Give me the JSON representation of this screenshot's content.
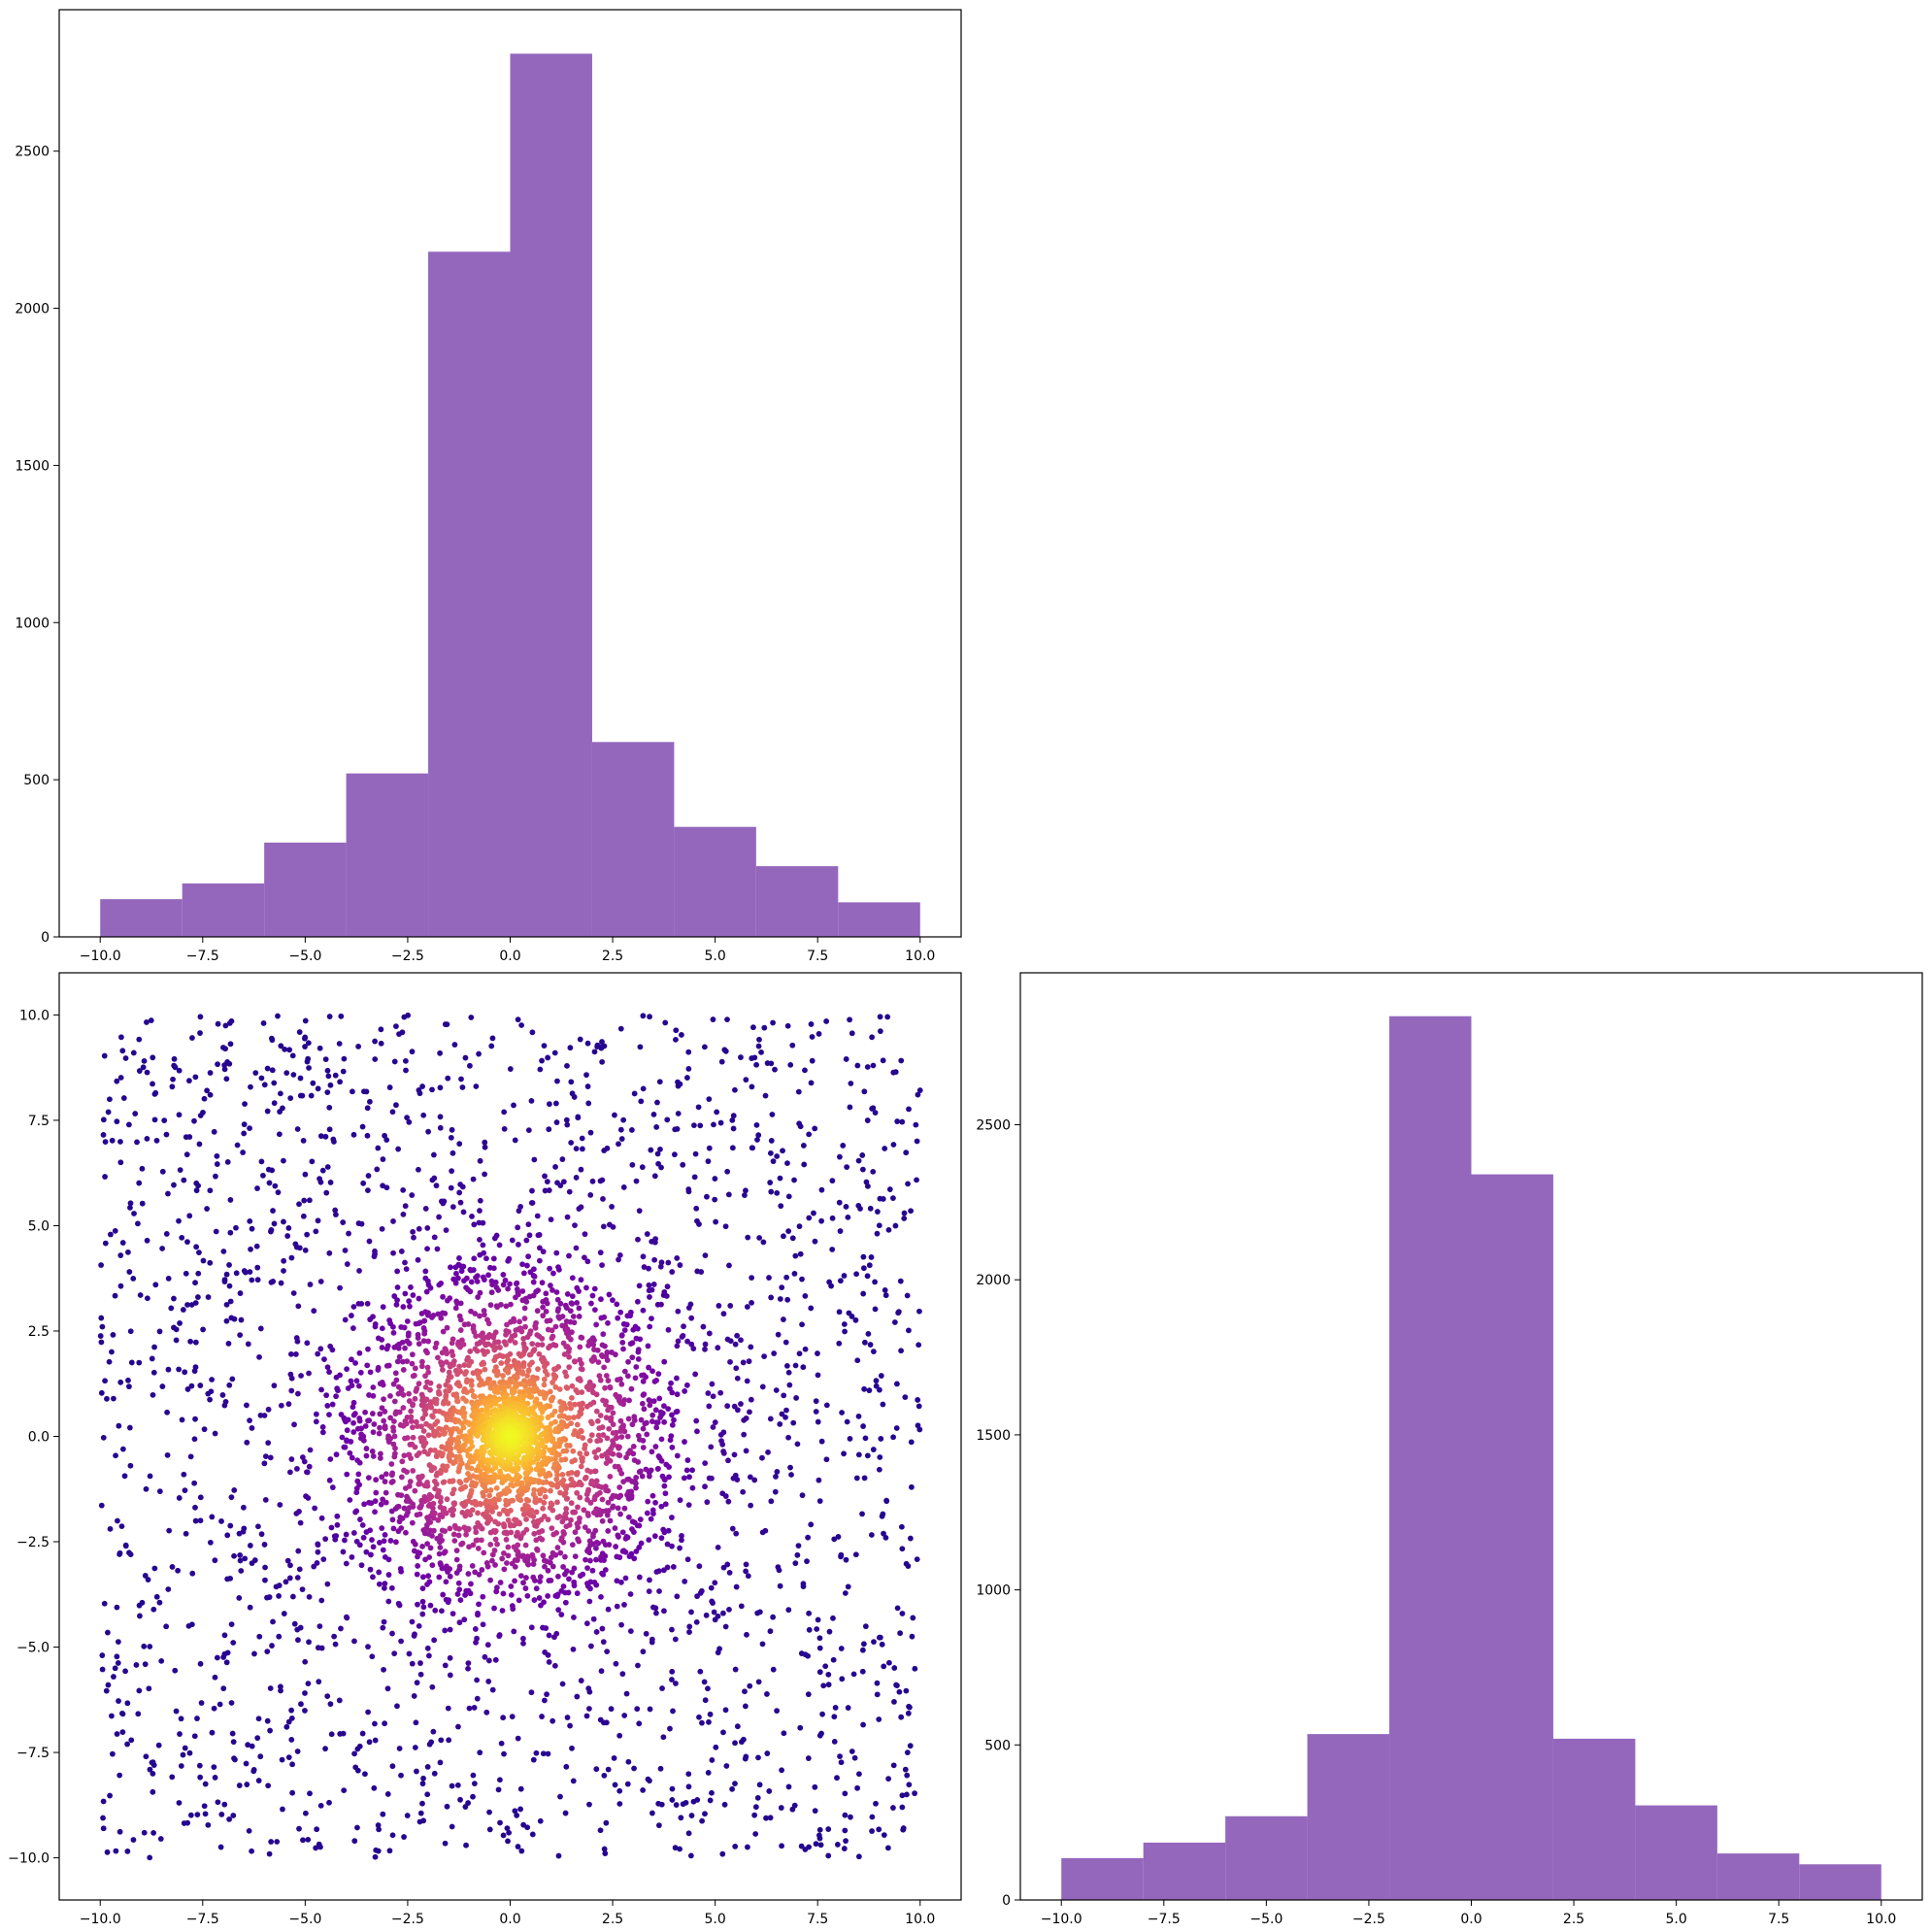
{
  "figure": {
    "bar_color": "#9467bd",
    "colormap_stops": [
      "#0d0887",
      "#6a00a8",
      "#b12a90",
      "#e16462",
      "#fca636",
      "#f0f921"
    ]
  },
  "chart_data": [
    {
      "id": "top-left-histogram",
      "type": "bar",
      "title": "",
      "xlabel": "",
      "ylabel": "",
      "bin_edges": [
        -10,
        -8,
        -6,
        -4,
        -2,
        0,
        2,
        4,
        6,
        8,
        10
      ],
      "values": [
        120,
        170,
        300,
        520,
        2180,
        2810,
        620,
        350,
        225,
        110
      ],
      "xlim": [
        -11,
        11
      ],
      "ylim": [
        0,
        2950
      ],
      "xticks": [
        -10,
        -7.5,
        -5,
        -2.5,
        0,
        2.5,
        5,
        7.5,
        10
      ],
      "xtick_labels": [
        "−10.0",
        "−7.5",
        "−5.0",
        "−2.5",
        "0.0",
        "2.5",
        "5.0",
        "7.5",
        "10.0"
      ],
      "yticks": [
        0,
        500,
        1000,
        1500,
        2000,
        2500
      ],
      "ytick_labels": [
        "0",
        "500",
        "1000",
        "1500",
        "2000",
        "2500"
      ],
      "grid": false
    },
    {
      "id": "bottom-left-scatter",
      "type": "scatter",
      "title": "",
      "xlabel": "",
      "ylabel": "",
      "description_of_distribution": "",
      "n_points": 5000,
      "center": [
        0,
        0
      ],
      "xlim": [
        -11,
        11
      ],
      "ylim": [
        -11,
        11
      ],
      "color_by": "density",
      "xticks": [
        -10,
        -7.5,
        -5,
        -2.5,
        0,
        2.5,
        5,
        7.5,
        10
      ],
      "xtick_labels": [
        "−10.0",
        "−7.5",
        "−5.0",
        "−2.5",
        "0.0",
        "2.5",
        "5.0",
        "7.5",
        "10.0"
      ],
      "yticks": [
        -10,
        -7.5,
        -5,
        -2.5,
        0,
        2.5,
        5,
        7.5,
        10
      ],
      "ytick_labels": [
        "−10.0",
        "−7.5",
        "−5.0",
        "−2.5",
        "0.0",
        "2.5",
        "5.0",
        "7.5",
        "10.0"
      ],
      "grid": false
    },
    {
      "id": "bottom-right-histogram",
      "type": "bar",
      "title": "",
      "xlabel": "",
      "ylabel": "",
      "bin_edges": [
        -10,
        -8,
        -6,
        -4,
        -2,
        0,
        2,
        4,
        6,
        8,
        10
      ],
      "values": [
        135,
        185,
        270,
        535,
        2850,
        2340,
        520,
        305,
        150,
        115
      ],
      "xlim": [
        -11,
        11
      ],
      "ylim": [
        0,
        2990
      ],
      "xticks": [
        -10,
        -7.5,
        -5,
        -2.5,
        0,
        2.5,
        5,
        7.5,
        10
      ],
      "xtick_labels": [
        "−10.0",
        "−7.5",
        "−5.0",
        "−2.5",
        "0.0",
        "2.5",
        "5.0",
        "7.5",
        "10.0"
      ],
      "yticks": [
        0,
        500,
        1000,
        1500,
        2000,
        2500
      ],
      "ytick_labels": [
        "0",
        "500",
        "1000",
        "1500",
        "2000",
        "2500"
      ],
      "grid": false
    }
  ]
}
